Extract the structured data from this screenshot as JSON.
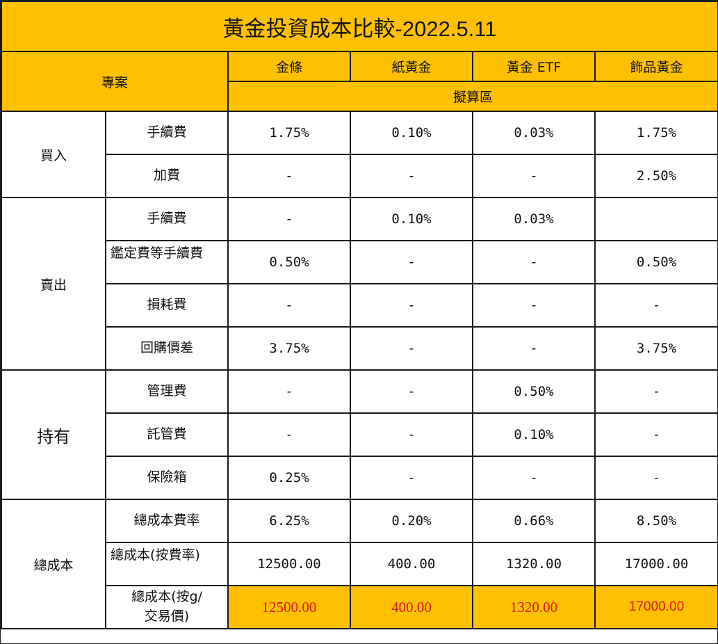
{
  "title": "黃金投資成本比較-2022.5.11",
  "header": {
    "project": "專案",
    "columns": [
      "金條",
      "紙黃金",
      "黃金 ETF",
      "飾品黃金"
    ],
    "estimate": "擬算區"
  },
  "groups": {
    "buy": {
      "label": "買入",
      "rows": [
        {
          "item": "手續費",
          "values": [
            "1.75%",
            "0.10%",
            "0.03%",
            "1.75%"
          ]
        },
        {
          "item": "加費",
          "values": [
            "-",
            "-",
            "-",
            "2.50%"
          ]
        }
      ]
    },
    "sell": {
      "label": "賣出",
      "rows": [
        {
          "item": "手續費",
          "values": [
            "-",
            "0.10%",
            "0.03%",
            ""
          ]
        },
        {
          "item": "鑑定費等手續費",
          "values": [
            "0.50%",
            "-",
            "-",
            "0.50%"
          ]
        },
        {
          "item": "損耗費",
          "values": [
            "-",
            "-",
            "-",
            "-"
          ]
        },
        {
          "item": "回購價差",
          "values": [
            "3.75%",
            "-",
            "-",
            "3.75%"
          ]
        }
      ]
    },
    "hold": {
      "label": "持有",
      "rows": [
        {
          "item": "管理費",
          "values": [
            "-",
            "-",
            "0.50%",
            "-"
          ]
        },
        {
          "item": "託管費",
          "values": [
            "-",
            "-",
            "0.10%",
            "-"
          ]
        },
        {
          "item": "保險箱",
          "values": [
            "0.25%",
            "-",
            "-",
            "-"
          ]
        }
      ]
    },
    "total": {
      "label": "總成本",
      "rows": [
        {
          "item": "總成本費率",
          "values": [
            "6.25%",
            "0.20%",
            "0.66%",
            "8.50%"
          ]
        },
        {
          "item": "總成本(按費率)",
          "values": [
            "12500.00",
            "400.00",
            "1320.00",
            "17000.00"
          ]
        },
        {
          "item": "總成本(按g/\n交易價)",
          "values": [
            "12500.00",
            "400.00",
            "1320.00",
            "17000.00"
          ]
        }
      ]
    }
  },
  "colors": {
    "header_bg": "#FFC000",
    "highlight_text": "#e0180f",
    "border": "#1a1a1a"
  }
}
